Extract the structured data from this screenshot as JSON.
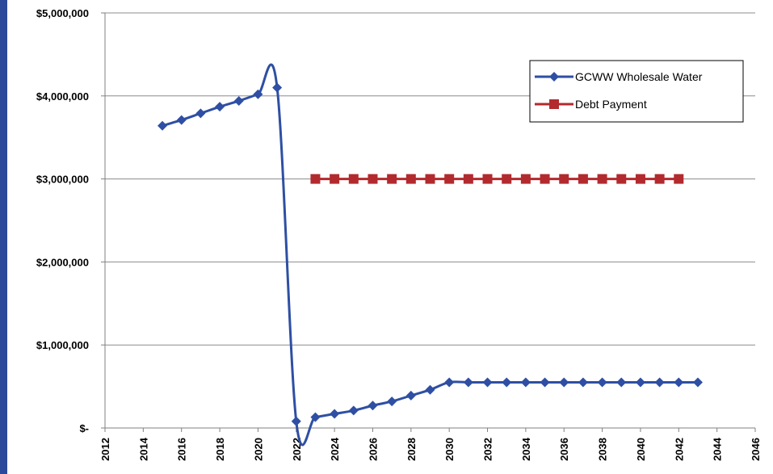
{
  "chart_data": {
    "type": "line",
    "title": "",
    "xlabel": "",
    "ylabel": "",
    "xlim": [
      2012,
      2046
    ],
    "ylim": [
      0,
      5000000
    ],
    "x_ticks": [
      "2012",
      "2014",
      "2016",
      "2018",
      "2020",
      "2022",
      "2024",
      "2026",
      "2028",
      "2030",
      "2032",
      "2034",
      "2036",
      "2038",
      "2040",
      "2042",
      "2044",
      "2046"
    ],
    "y_ticks": [
      {
        "value": 0,
        "label": "$-"
      },
      {
        "value": 1000000,
        "label": "$1,000,000"
      },
      {
        "value": 2000000,
        "label": "$2,000,000"
      },
      {
        "value": 3000000,
        "label": "$3,000,000"
      },
      {
        "value": 4000000,
        "label": "$4,000,000"
      },
      {
        "value": 5000000,
        "label": "$5,000,000"
      }
    ],
    "grid": true,
    "legend_position": "top-right",
    "series": [
      {
        "name": "GCWW Wholesale Water",
        "color": "#2e4fa3",
        "marker": "diamond",
        "smooth": true,
        "x": [
          2015,
          2016,
          2017,
          2018,
          2019,
          2020,
          2021,
          2022,
          2023,
          2024,
          2025,
          2026,
          2027,
          2028,
          2029,
          2030,
          2031,
          2032,
          2033,
          2034,
          2035,
          2036,
          2037,
          2038,
          2039,
          2040,
          2041,
          2042,
          2043
        ],
        "values": [
          3640000,
          3710000,
          3790000,
          3870000,
          3940000,
          4020000,
          4100000,
          80000,
          130000,
          170000,
          210000,
          270000,
          320000,
          390000,
          460000,
          550000,
          550000,
          550000,
          550000,
          550000,
          550000,
          550000,
          550000,
          550000,
          550000,
          550000,
          550000,
          550000,
          550000
        ]
      },
      {
        "name": "Debt Payment",
        "color": "#b22a2e",
        "marker": "square",
        "smooth": false,
        "x": [
          2023,
          2024,
          2025,
          2026,
          2027,
          2028,
          2029,
          2030,
          2031,
          2032,
          2033,
          2034,
          2035,
          2036,
          2037,
          2038,
          2039,
          2040,
          2041,
          2042
        ],
        "values": [
          3000000,
          3000000,
          3000000,
          3000000,
          3000000,
          3000000,
          3000000,
          3000000,
          3000000,
          3000000,
          3000000,
          3000000,
          3000000,
          3000000,
          3000000,
          3000000,
          3000000,
          3000000,
          3000000,
          3000000
        ]
      }
    ]
  }
}
